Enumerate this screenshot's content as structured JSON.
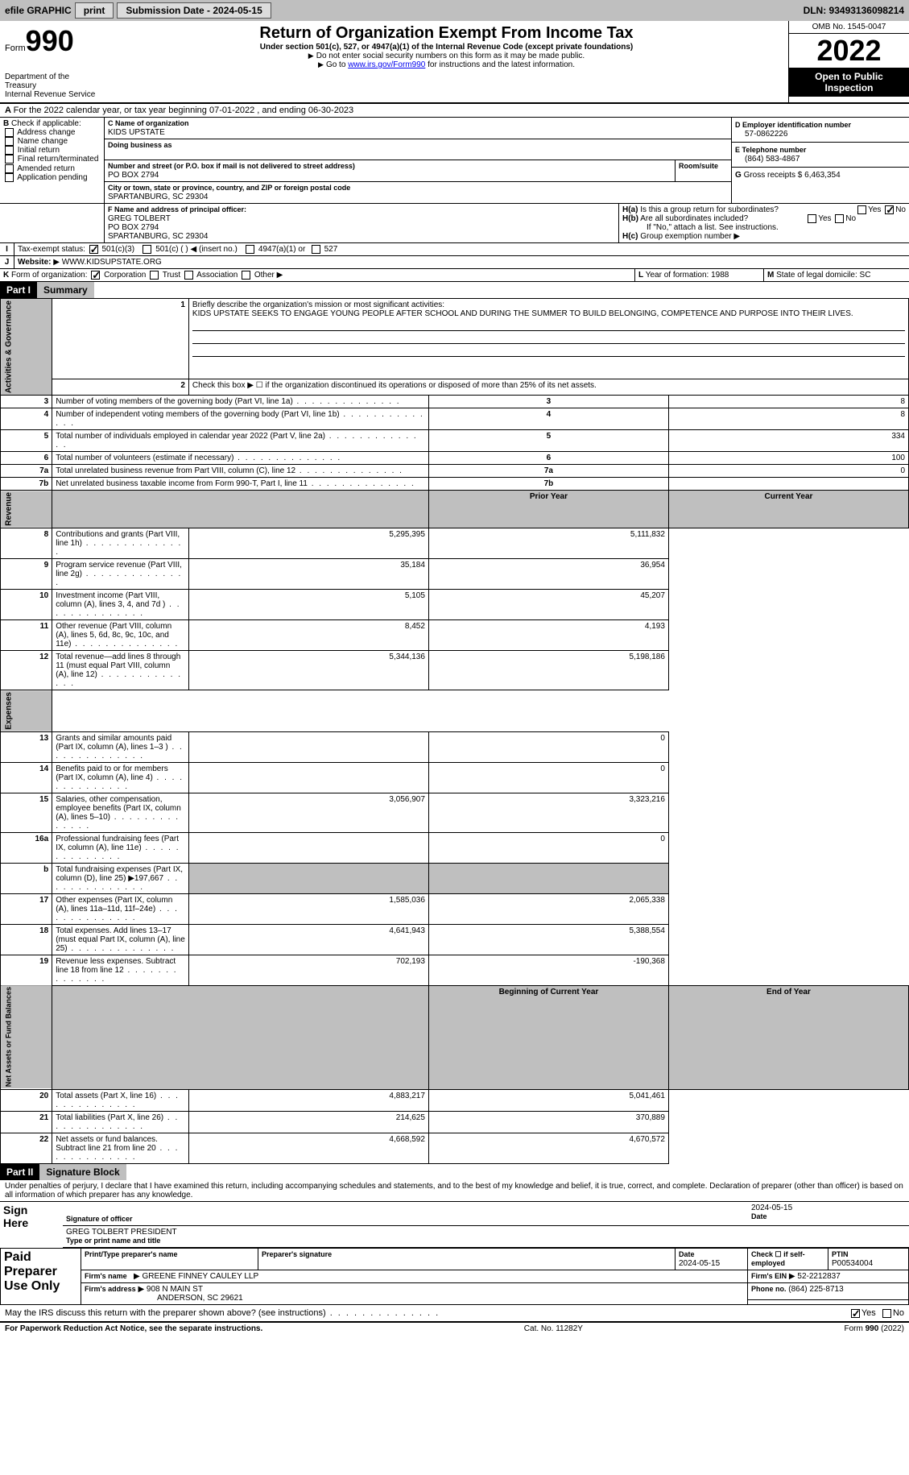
{
  "topbar": {
    "efile": "efile GRAPHIC",
    "print": "print",
    "submission": "Submission Date - 2024-05-15",
    "dln": "DLN: 93493136098214"
  },
  "header": {
    "form_word": "Form",
    "form_num": "990",
    "dept": "Department of the Treasury",
    "irs": "Internal Revenue Service",
    "title": "Return of Organization Exempt From Income Tax",
    "sub": "Under section 501(c), 527, or 4947(a)(1) of the Internal Revenue Code (except private foundations)",
    "instr1": "Do not enter social security numbers on this form as it may be made public.",
    "instr2_a": "Go to",
    "instr2_link": "www.irs.gov/Form990",
    "instr2_b": "for instructions and the latest information.",
    "omb": "OMB No. 1545-0047",
    "year": "2022",
    "badge": "Open to Public Inspection"
  },
  "sectionA": {
    "line": "For the 2022 calendar year, or tax year beginning 07-01-2022    , and ending 06-30-2023"
  },
  "sectionB": {
    "label": "Check if applicable:",
    "opts": [
      "Address change",
      "Name change",
      "Initial return",
      "Final return/terminated",
      "Amended return",
      "Application pending"
    ]
  },
  "sectionC": {
    "name_label": "Name of organization",
    "name": "KIDS UPSTATE",
    "dba_label": "Doing business as",
    "street_label": "Number and street (or P.O. box if mail is not delivered to street address)",
    "room_label": "Room/suite",
    "street": "PO BOX 2794",
    "city_label": "City or town, state or province, country, and ZIP or foreign postal code",
    "city": "SPARTANBURG, SC  29304"
  },
  "sectionD": {
    "label": "Employer identification number",
    "val": "57-0862226"
  },
  "sectionE": {
    "label": "Telephone number",
    "val": "(864) 583-4867"
  },
  "sectionG": {
    "label": "Gross receipts $",
    "val": "6,463,354"
  },
  "sectionF": {
    "label": "Name and address of principal officer:",
    "name": "GREG TOLBERT",
    "street": "PO BOX 2794",
    "city": "SPARTANBURG, SC  29304"
  },
  "sectionH": {
    "a": "Is this a group return for subordinates?",
    "b": "Are all subordinates included?",
    "note": "If \"No,\" attach a list. See instructions.",
    "c": "Group exemption number",
    "yes": "Yes",
    "no": "No"
  },
  "sectionI": {
    "label": "Tax-exempt status:",
    "o1": "501(c)(3)",
    "o2": "501(c) (  ) ◀ (insert no.)",
    "o3": "4947(a)(1) or",
    "o4": "527"
  },
  "sectionJ": {
    "label": "Website:",
    "val": "WWW.KIDSUPSTATE.ORG"
  },
  "sectionK": {
    "label": "Form of organization:",
    "o1": "Corporation",
    "o2": "Trust",
    "o3": "Association",
    "o4": "Other"
  },
  "sectionL": {
    "label": "Year of formation:",
    "val": "1988"
  },
  "sectionM": {
    "label": "State of legal domicile:",
    "val": "SC"
  },
  "part1": {
    "hdr": "Part I",
    "title": "Summary",
    "vtab1": "Activities & Governance",
    "vtab2": "Revenue",
    "vtab3": "Expenses",
    "vtab4": "Net Assets or Fund Balances",
    "l1": "Briefly describe the organization's mission or most significant activities:",
    "mission": "KIDS UPSTATE SEEKS TO ENGAGE YOUNG PEOPLE AFTER SCHOOL AND DURING THE SUMMER TO BUILD BELONGING, COMPETENCE AND PURPOSE INTO THEIR LIVES.",
    "l2": "Check this box ▶ ☐ if the organization discontinued its operations or disposed of more than 25% of its net assets.",
    "prior_hdr": "Prior Year",
    "curr_hdr": "Current Year",
    "begin_hdr": "Beginning of Current Year",
    "end_hdr": "End of Year",
    "rows_a": [
      {
        "n": "3",
        "t": "Number of voting members of the governing body (Part VI, line 1a)",
        "v": "8"
      },
      {
        "n": "4",
        "t": "Number of independent voting members of the governing body (Part VI, line 1b)",
        "v": "8"
      },
      {
        "n": "5",
        "t": "Total number of individuals employed in calendar year 2022 (Part V, line 2a)",
        "v": "334"
      },
      {
        "n": "6",
        "t": "Total number of volunteers (estimate if necessary)",
        "v": "100"
      },
      {
        "n": "7a",
        "t": "Total unrelated business revenue from Part VIII, column (C), line 12",
        "v": "0"
      },
      {
        "n": "7b",
        "t": "Net unrelated business taxable income from Form 990-T, Part I, line 11",
        "v": ""
      }
    ],
    "rows_r": [
      {
        "n": "8",
        "t": "Contributions and grants (Part VIII, line 1h)",
        "p": "5,295,395",
        "c": "5,111,832"
      },
      {
        "n": "9",
        "t": "Program service revenue (Part VIII, line 2g)",
        "p": "35,184",
        "c": "36,954"
      },
      {
        "n": "10",
        "t": "Investment income (Part VIII, column (A), lines 3, 4, and 7d )",
        "p": "5,105",
        "c": "45,207"
      },
      {
        "n": "11",
        "t": "Other revenue (Part VIII, column (A), lines 5, 6d, 8c, 9c, 10c, and 11e)",
        "p": "8,452",
        "c": "4,193"
      },
      {
        "n": "12",
        "t": "Total revenue—add lines 8 through 11 (must equal Part VIII, column (A), line 12)",
        "p": "5,344,136",
        "c": "5,198,186"
      }
    ],
    "rows_e": [
      {
        "n": "13",
        "t": "Grants and similar amounts paid (Part IX, column (A), lines 1–3 )",
        "p": "",
        "c": "0"
      },
      {
        "n": "14",
        "t": "Benefits paid to or for members (Part IX, column (A), line 4)",
        "p": "",
        "c": "0"
      },
      {
        "n": "15",
        "t": "Salaries, other compensation, employee benefits (Part IX, column (A), lines 5–10)",
        "p": "3,056,907",
        "c": "3,323,216"
      },
      {
        "n": "16a",
        "t": "Professional fundraising fees (Part IX, column (A), line 11e)",
        "p": "",
        "c": "0"
      },
      {
        "n": "b",
        "t": "Total fundraising expenses (Part IX, column (D), line 25) ▶197,667",
        "p": "SHADE",
        "c": "SHADE"
      },
      {
        "n": "17",
        "t": "Other expenses (Part IX, column (A), lines 11a–11d, 11f–24e)",
        "p": "1,585,036",
        "c": "2,065,338"
      },
      {
        "n": "18",
        "t": "Total expenses. Add lines 13–17 (must equal Part IX, column (A), line 25)",
        "p": "4,641,943",
        "c": "5,388,554"
      },
      {
        "n": "19",
        "t": "Revenue less expenses. Subtract line 18 from line 12",
        "p": "702,193",
        "c": "-190,368"
      }
    ],
    "rows_n": [
      {
        "n": "20",
        "t": "Total assets (Part X, line 16)",
        "p": "4,883,217",
        "c": "5,041,461"
      },
      {
        "n": "21",
        "t": "Total liabilities (Part X, line 26)",
        "p": "214,625",
        "c": "370,889"
      },
      {
        "n": "22",
        "t": "Net assets or fund balances. Subtract line 21 from line 20",
        "p": "4,668,592",
        "c": "4,670,572"
      }
    ]
  },
  "part2": {
    "hdr": "Part II",
    "title": "Signature Block",
    "decl": "Under penalties of perjury, I declare that I have examined this return, including accompanying schedules and statements, and to the best of my knowledge and belief, it is true, correct, and complete. Declaration of preparer (other than officer) is based on all information of which preparer has any knowledge.",
    "sign_here": "Sign Here",
    "sig_officer": "Signature of officer",
    "date": "Date",
    "sig_date": "2024-05-15",
    "name_title": "GREG TOLBERT PRESIDENT",
    "type_name": "Type or print name and title",
    "paid": "Paid Preparer Use Only",
    "prep_name_l": "Print/Type preparer's name",
    "prep_sig_l": "Preparer's signature",
    "prep_date_l": "Date",
    "prep_date": "2024-05-15",
    "check_self": "Check ☐ if self-employed",
    "ptin_l": "PTIN",
    "ptin": "P00534004",
    "firm_name_l": "Firm's name",
    "firm_name": "GREENE FINNEY CAULEY LLP",
    "firm_ein_l": "Firm's EIN",
    "firm_ein": "52-2212837",
    "firm_addr_l": "Firm's address",
    "firm_addr1": "908 N MAIN ST",
    "firm_addr2": "ANDERSON, SC  29621",
    "phone_l": "Phone no.",
    "phone": "(864) 225-8713",
    "discuss": "May the IRS discuss this return with the preparer shown above? (see instructions)"
  },
  "footer": {
    "l": "For Paperwork Reduction Act Notice, see the separate instructions.",
    "m": "Cat. No. 11282Y",
    "r": "Form 990 (2022)"
  }
}
